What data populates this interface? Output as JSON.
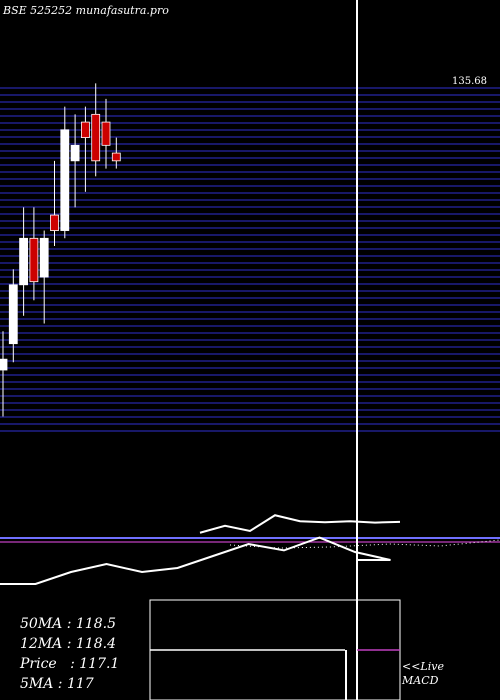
{
  "header": {
    "exchange": "BSE",
    "code": "525252",
    "site": "munafasutra.pro"
  },
  "stats": [
    {
      "label": "50MA",
      "value": "118.5"
    },
    {
      "label": "12MA",
      "value": "118.4"
    },
    {
      "label": "Price",
      "value": "117.1"
    },
    {
      "label": "5MA",
      "value": "117"
    }
  ],
  "live": {
    "line1": "<<Live",
    "line2": "MACD"
  },
  "colors": {
    "bg": "#000000",
    "grid": "#20208a",
    "up": "#ffffff",
    "down": "#cc0000",
    "avg": "#7070ff",
    "signal": "#c040c0"
  },
  "chart_data": {
    "type": "candlestick",
    "title": "BSE 525252 munafasutra.pro",
    "price_axis": {
      "top_label": "135.68",
      "ylim": [
        113.5,
        135.7
      ]
    },
    "candles": [
      {
        "o": 117.5,
        "h": 120.0,
        "l": 114.5,
        "c": 118.2
      },
      {
        "o": 119.2,
        "h": 124.0,
        "l": 118.0,
        "c": 123.0
      },
      {
        "o": 123.0,
        "h": 128.0,
        "l": 121.0,
        "c": 126.0
      },
      {
        "o": 126.0,
        "h": 128.0,
        "l": 122.0,
        "c": 123.2
      },
      {
        "o": 123.5,
        "h": 126.5,
        "l": 120.5,
        "c": 126.0
      },
      {
        "o": 127.5,
        "h": 131.0,
        "l": 125.5,
        "c": 126.5
      },
      {
        "o": 126.5,
        "h": 134.5,
        "l": 126.0,
        "c": 133.0
      },
      {
        "o": 131.0,
        "h": 134.0,
        "l": 128.0,
        "c": 132.0
      },
      {
        "o": 133.5,
        "h": 134.5,
        "l": 129.0,
        "c": 132.5
      },
      {
        "o": 134.0,
        "h": 136.0,
        "l": 130.0,
        "c": 131.0
      },
      {
        "o": 133.5,
        "h": 135.0,
        "l": 130.5,
        "c": 132.0
      },
      {
        "o": 131.5,
        "h": 132.5,
        "l": 130.5,
        "c": 131.0
      }
    ],
    "macd": [
      0.3,
      0.3,
      0.45,
      0.55,
      0.45,
      0.5,
      0.65,
      0.8,
      0.72,
      0.88,
      0.7,
      0.6
    ],
    "indicator_line": [
      0.35,
      0.55,
      0.4,
      0.85,
      0.68,
      0.65,
      0.68,
      0.64,
      0.66
    ]
  }
}
